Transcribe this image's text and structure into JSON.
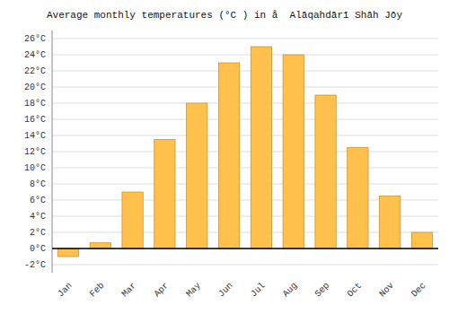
{
  "chart_data": {
    "type": "bar",
    "title": "Average monthly temperatures (°C ) in å  Alāqahdārī Shāh Jōy",
    "categories": [
      "Jan",
      "Feb",
      "Mar",
      "Apr",
      "May",
      "Jun",
      "Jul",
      "Aug",
      "Sep",
      "Oct",
      "Nov",
      "Dec"
    ],
    "values": [
      -1.0,
      0.7,
      7.0,
      13.5,
      18.0,
      23.0,
      25.0,
      24.0,
      19.0,
      12.5,
      6.5,
      2.0
    ],
    "color": "#FFC04C",
    "ylim": [
      -3,
      27
    ],
    "yticks": [
      {
        "value": -2,
        "label": "-2°C"
      },
      {
        "value": 0,
        "label": "0°C"
      },
      {
        "value": 2,
        "label": "2°C"
      },
      {
        "value": 4,
        "label": "4°C"
      },
      {
        "value": 6,
        "label": "6°C"
      },
      {
        "value": 8,
        "label": "8°C"
      },
      {
        "value": 10,
        "label": "10°C"
      },
      {
        "value": 12,
        "label": "12°C"
      },
      {
        "value": 14,
        "label": "14°C"
      },
      {
        "value": 16,
        "label": "16°C"
      },
      {
        "value": 18,
        "label": "18°C"
      },
      {
        "value": 20,
        "label": "20°C"
      },
      {
        "value": 22,
        "label": "22°C"
      },
      {
        "value": 24,
        "label": "24°C"
      },
      {
        "value": 26,
        "label": "26°C"
      }
    ],
    "grid": true
  }
}
